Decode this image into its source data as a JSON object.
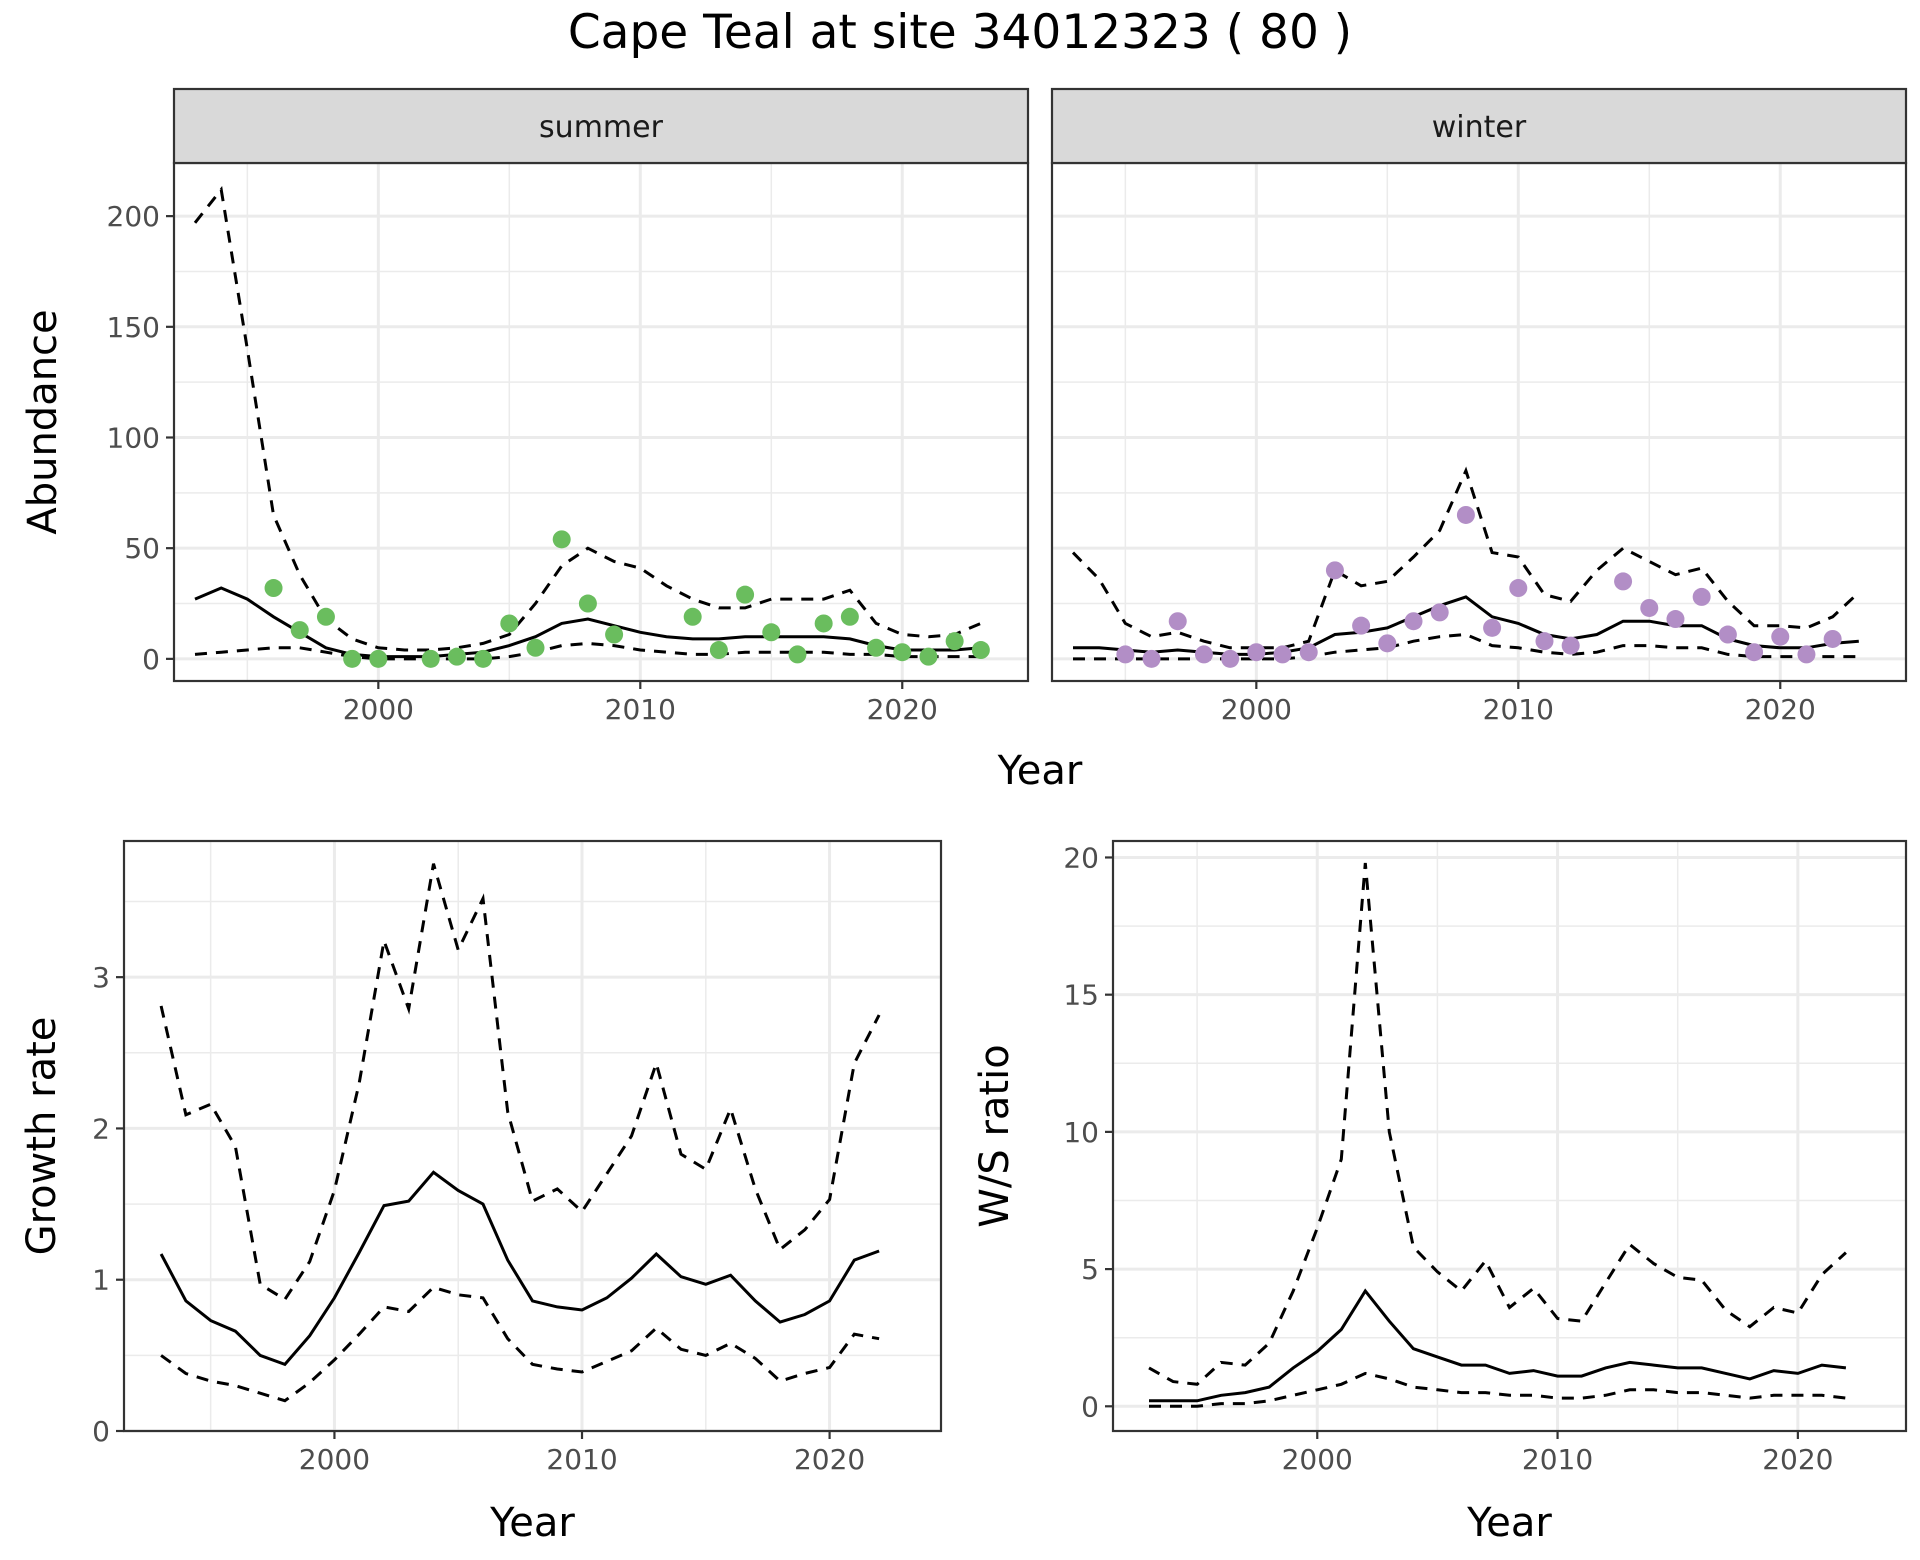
{
  "title": "Cape Teal at site 34012323 ( 80 )",
  "chart_data": [
    {
      "id": "abundance",
      "type": "line",
      "facets": [
        "summer",
        "winter"
      ],
      "xlabel": "Year",
      "ylabel": "Abundance",
      "xlim": [
        1992.2,
        2024.8
      ],
      "ylim": [
        -10,
        224
      ],
      "xticks": [
        2000,
        2010,
        2020
      ],
      "yticks": [
        0,
        50,
        100,
        150,
        200
      ],
      "grid": true,
      "panels": [
        {
          "name": "summer",
          "point_color": "#6abd5e",
          "fit_years": [
            1993,
            1994,
            1995,
            1996,
            1997,
            1998,
            1999,
            2000,
            2001,
            2002,
            2003,
            2004,
            2005,
            2006,
            2007,
            2008,
            2009,
            2010,
            2011,
            2012,
            2013,
            2014,
            2015,
            2016,
            2017,
            2018,
            2019,
            2020,
            2021,
            2022,
            2023
          ],
          "mean": [
            27,
            32,
            27,
            19,
            12,
            5,
            2,
            1,
            1,
            1,
            2,
            3,
            6,
            10,
            16,
            18,
            15,
            12,
            10,
            9,
            9,
            10,
            10,
            10,
            10,
            9,
            6,
            4,
            4,
            4,
            5
          ],
          "upper": [
            197,
            212,
            140,
            65,
            38,
            18,
            9,
            5,
            4,
            4,
            5,
            7,
            11,
            25,
            42,
            50,
            44,
            41,
            33,
            27,
            23,
            23,
            27,
            27,
            27,
            31,
            16,
            11,
            10,
            11,
            16
          ],
          "lower": [
            2,
            3,
            4,
            5,
            5,
            3,
            1,
            0,
            0,
            0,
            0,
            0,
            1,
            3,
            6,
            7,
            6,
            4,
            3,
            2,
            2,
            3,
            3,
            3,
            3,
            2,
            2,
            1,
            1,
            1,
            1
          ],
          "obs_years": [
            1996,
            1997,
            1998,
            1999,
            2000,
            2002,
            2003,
            2004,
            2005,
            2006,
            2007,
            2008,
            2009,
            2012,
            2013,
            2014,
            2015,
            2016,
            2017,
            2018,
            2019,
            2020,
            2021,
            2022,
            2023
          ],
          "obs_values": [
            32,
            13,
            19,
            0,
            0,
            0,
            1,
            0,
            16,
            5,
            54,
            25,
            11,
            19,
            4,
            29,
            12,
            2,
            16,
            19,
            5,
            3,
            1,
            8,
            4
          ]
        },
        {
          "name": "winter",
          "point_color": "#b28ec6",
          "fit_years": [
            1993,
            1994,
            1995,
            1996,
            1997,
            1998,
            1999,
            2000,
            2001,
            2002,
            2003,
            2004,
            2005,
            2006,
            2007,
            2008,
            2009,
            2010,
            2011,
            2012,
            2013,
            2014,
            2015,
            2016,
            2017,
            2018,
            2019,
            2020,
            2021,
            2022,
            2023
          ],
          "mean": [
            5,
            5,
            4,
            3,
            4,
            3,
            2,
            2,
            3,
            5,
            11,
            12,
            14,
            19,
            24,
            28,
            19,
            16,
            11,
            9,
            11,
            17,
            17,
            15,
            15,
            9,
            6,
            5,
            5,
            7,
            8
          ],
          "upper": [
            48,
            36,
            16,
            10,
            12,
            8,
            5,
            5,
            5,
            8,
            40,
            33,
            35,
            46,
            58,
            85,
            48,
            46,
            29,
            26,
            40,
            50,
            44,
            38,
            41,
            26,
            15,
            15,
            14,
            19,
            30
          ],
          "lower": [
            0,
            0,
            0,
            0,
            0,
            0,
            0,
            0,
            0,
            1,
            3,
            4,
            5,
            8,
            10,
            11,
            6,
            5,
            3,
            2,
            3,
            6,
            6,
            5,
            5,
            2,
            1,
            1,
            1,
            1,
            1
          ],
          "obs_years": [
            1995,
            1996,
            1997,
            1998,
            1999,
            2000,
            2001,
            2002,
            2003,
            2004,
            2005,
            2006,
            2007,
            2008,
            2009,
            2010,
            2011,
            2012,
            2014,
            2015,
            2016,
            2017,
            2018,
            2019,
            2020,
            2021,
            2022
          ],
          "obs_values": [
            2,
            0,
            17,
            2,
            0,
            3,
            2,
            3,
            40,
            15,
            7,
            17,
            21,
            65,
            14,
            32,
            8,
            6,
            35,
            23,
            18,
            28,
            11,
            3,
            10,
            2,
            9
          ]
        }
      ]
    },
    {
      "id": "growth",
      "type": "line",
      "xlabel": "Year",
      "ylabel": "Growth rate",
      "xlim": [
        1991.5,
        2024.5
      ],
      "ylim": [
        0,
        3.9
      ],
      "xticks": [
        2000,
        2010,
        2020
      ],
      "yticks": [
        0,
        1,
        2,
        3
      ],
      "grid": true,
      "x": [
        1993,
        1994,
        1995,
        1996,
        1997,
        1998,
        1999,
        2000,
        2001,
        2002,
        2003,
        2004,
        2005,
        2006,
        2007,
        2008,
        2009,
        2010,
        2011,
        2012,
        2013,
        2014,
        2015,
        2016,
        2017,
        2018,
        2019,
        2020,
        2021,
        2022
      ],
      "mean": [
        1.17,
        0.86,
        0.73,
        0.66,
        0.5,
        0.44,
        0.63,
        0.88,
        1.18,
        1.49,
        1.52,
        1.71,
        1.59,
        1.5,
        1.13,
        0.86,
        0.82,
        0.8,
        0.88,
        1.01,
        1.17,
        1.02,
        0.97,
        1.03,
        0.86,
        0.72,
        0.77,
        0.86,
        1.13,
        1.19
      ],
      "upper": [
        2.81,
        2.09,
        2.16,
        1.88,
        0.97,
        0.87,
        1.12,
        1.59,
        2.3,
        3.24,
        2.79,
        3.75,
        3.18,
        3.52,
        2.11,
        1.52,
        1.6,
        1.45,
        1.7,
        1.95,
        2.43,
        1.83,
        1.73,
        2.13,
        1.6,
        1.2,
        1.33,
        1.53,
        2.43,
        2.75
      ],
      "lower": [
        0.5,
        0.38,
        0.33,
        0.3,
        0.25,
        0.2,
        0.32,
        0.47,
        0.64,
        0.82,
        0.79,
        0.95,
        0.9,
        0.88,
        0.61,
        0.44,
        0.41,
        0.39,
        0.46,
        0.53,
        0.68,
        0.54,
        0.5,
        0.58,
        0.48,
        0.33,
        0.38,
        0.42,
        0.64,
        0.61
      ]
    },
    {
      "id": "ratio",
      "type": "line",
      "xlabel": "Year",
      "ylabel": "W/S ratio",
      "xlim": [
        1991.5,
        2024.5
      ],
      "ylim": [
        -0.9,
        20.6
      ],
      "xticks": [
        2000,
        2010,
        2020
      ],
      "yticks": [
        0,
        5,
        10,
        15,
        20
      ],
      "grid": true,
      "x": [
        1993,
        1994,
        1995,
        1996,
        1997,
        1998,
        1999,
        2000,
        2001,
        2002,
        2003,
        2004,
        2005,
        2006,
        2007,
        2008,
        2009,
        2010,
        2011,
        2012,
        2013,
        2014,
        2015,
        2016,
        2017,
        2018,
        2019,
        2020,
        2021,
        2022
      ],
      "mean": [
        0.2,
        0.2,
        0.2,
        0.4,
        0.5,
        0.7,
        1.4,
        2.0,
        2.8,
        4.2,
        3.1,
        2.1,
        1.8,
        1.5,
        1.5,
        1.2,
        1.3,
        1.1,
        1.1,
        1.4,
        1.6,
        1.5,
        1.4,
        1.4,
        1.2,
        1.0,
        1.3,
        1.2,
        1.5,
        1.4
      ],
      "upper": [
        1.4,
        0.9,
        0.8,
        1.6,
        1.5,
        2.3,
        4.2,
        6.5,
        9.0,
        19.8,
        10.0,
        5.8,
        4.9,
        4.2,
        5.3,
        3.6,
        4.3,
        3.2,
        3.1,
        4.5,
        5.9,
        5.2,
        4.7,
        4.6,
        3.5,
        2.9,
        3.6,
        3.4,
        4.8,
        5.6
      ],
      "lower": [
        0.0,
        0.0,
        0.0,
        0.1,
        0.1,
        0.2,
        0.4,
        0.6,
        0.8,
        1.2,
        1.0,
        0.7,
        0.6,
        0.5,
        0.5,
        0.4,
        0.4,
        0.3,
        0.3,
        0.4,
        0.6,
        0.6,
        0.5,
        0.5,
        0.4,
        0.3,
        0.4,
        0.4,
        0.4,
        0.3
      ]
    }
  ]
}
